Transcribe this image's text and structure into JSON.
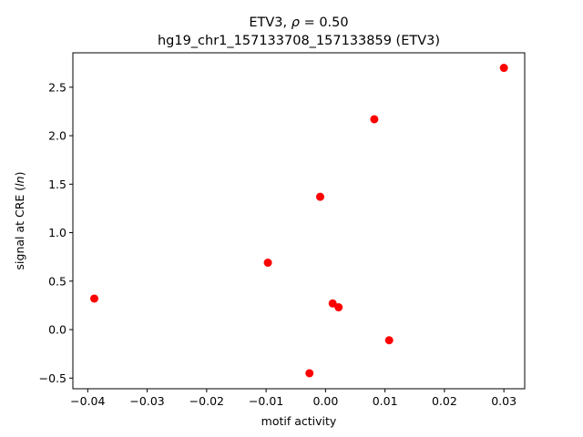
{
  "chart_data": {
    "type": "scatter",
    "title_prefix": "ETV3, ",
    "title_rho_symbol": "ρ",
    "title_rho_value": " = 0.50",
    "subtitle": "hg19_chr1_157133708_157133859 (ETV3)",
    "xlabel": "motif activity",
    "ylabel_prefix": "signal at CRE (",
    "ylabel_italic": "ln",
    "ylabel_suffix": ")",
    "xlim": [
      -0.0425,
      0.0335
    ],
    "ylim": [
      -0.61,
      2.855
    ],
    "xticks": [
      -0.04,
      -0.03,
      -0.02,
      -0.01,
      0.0,
      0.01,
      0.02,
      0.03
    ],
    "xtick_labels": [
      "−0.04",
      "−0.03",
      "−0.02",
      "−0.01",
      "0.00",
      "0.01",
      "0.02",
      "0.03"
    ],
    "yticks": [
      -0.5,
      0.0,
      0.5,
      1.0,
      1.5,
      2.0,
      2.5
    ],
    "ytick_labels": [
      "−0.5",
      "0.0",
      "0.5",
      "1.0",
      "1.5",
      "2.0",
      "2.5"
    ],
    "point_color": "#ff0000",
    "grid": false,
    "points": [
      {
        "x": -0.0389,
        "y": 0.32
      },
      {
        "x": -0.0097,
        "y": 0.69
      },
      {
        "x": -0.0027,
        "y": -0.45
      },
      {
        "x": -0.0009,
        "y": 1.37
      },
      {
        "x": 0.0012,
        "y": 0.27
      },
      {
        "x": 0.0022,
        "y": 0.23
      },
      {
        "x": 0.0082,
        "y": 2.17
      },
      {
        "x": 0.0107,
        "y": -0.11
      },
      {
        "x": 0.03,
        "y": 2.7
      }
    ]
  }
}
